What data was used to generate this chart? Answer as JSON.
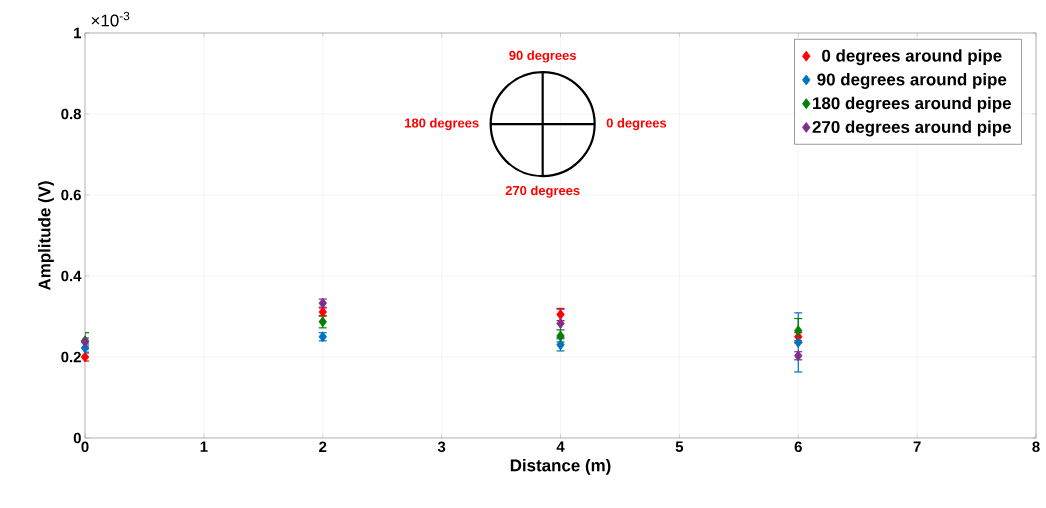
{
  "chart_data": {
    "type": "scatter",
    "xlabel": "Distance (m)",
    "ylabel": "Amplitude (V)",
    "xlim": [
      0,
      8
    ],
    "ylim": [
      0,
      1
    ],
    "xticks": [
      0,
      1,
      2,
      3,
      4,
      5,
      6,
      7,
      8
    ],
    "yticks": [
      0,
      0.2,
      0.4,
      0.6,
      0.8,
      1
    ],
    "grid": true,
    "legend": "top right",
    "marker": "diamond",
    "annotations": [
      "×10$^{-3}$",
      "90 degrees",
      "180 degrees",
      "0 degrees",
      "270 degrees"
    ],
    "x": [
      0,
      2,
      4,
      6
    ],
    "series": [
      {
        "name": "0 degrees around pipe",
        "color": "#ff0000",
        "values": [
          0.2,
          0.311,
          0.305,
          0.25
        ],
        "errors": [
          0.01,
          0.01,
          0.015,
          0.01
        ]
      },
      {
        "name": "90 degrees around pipe",
        "color": "#0072bd",
        "values": [
          0.222,
          0.25,
          0.23,
          0.236
        ],
        "errors": [
          0.01,
          0.01,
          0.015,
          0.073
        ]
      },
      {
        "name": "180 degrees around pipe",
        "color": "#008000",
        "values": [
          0.24,
          0.287,
          0.252,
          0.265
        ],
        "errors": [
          0.02,
          0.015,
          0.015,
          0.03
        ]
      },
      {
        "name": "270 degrees around pipe",
        "color": "#7e2f8e",
        "values": [
          0.237,
          0.333,
          0.283,
          0.203
        ],
        "errors": [
          0.01,
          0.01,
          0.035,
          0.01
        ]
      }
    ]
  }
}
